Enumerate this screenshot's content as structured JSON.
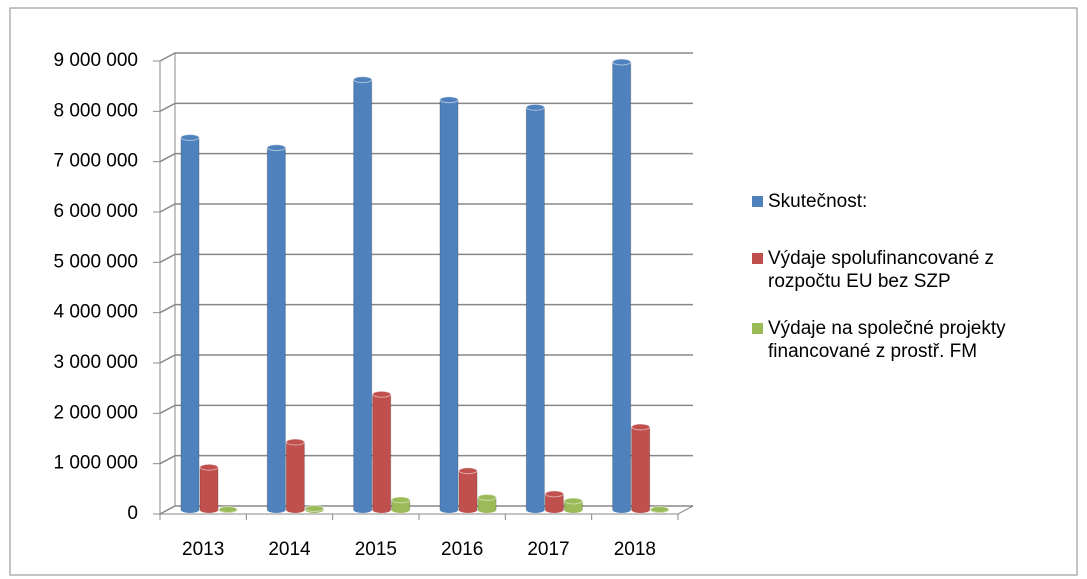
{
  "chart_data": {
    "type": "bar",
    "categories": [
      "2013",
      "2014",
      "2015",
      "2016",
      "2017",
      "2018"
    ],
    "series": [
      {
        "name": "Skutečnost:",
        "color": "#4f81bd",
        "values": [
          7400000,
          7200000,
          8550000,
          8150000,
          8000000,
          8900000
        ]
      },
      {
        "name": "Výdaje spolufinancované z rozpočtu EU bez SZP",
        "color": "#c0504d",
        "values": [
          850000,
          1350000,
          2300000,
          780000,
          320000,
          1650000
        ]
      },
      {
        "name": "Výdaje na společné projekty financované z prostř. FM",
        "color": "#9bbb59",
        "values": [
          10000,
          30000,
          200000,
          250000,
          180000,
          10000
        ]
      }
    ],
    "ylim": [
      0,
      9000000
    ],
    "yticks": [
      0,
      {
        "value": 1000000,
        "label": "1 000 000"
      },
      {
        "value": 2000000,
        "label": "2 000 000"
      },
      {
        "value": 3000000,
        "label": "3 000 000"
      },
      {
        "value": 4000000,
        "label": "4 000 000"
      },
      {
        "value": 5000000,
        "label": "5 000 000"
      },
      {
        "value": 6000000,
        "label": "6 000 000"
      },
      {
        "value": 7000000,
        "label": "7 000 000"
      },
      {
        "value": 8000000,
        "label": "8 000 000"
      },
      {
        "value": 9000000,
        "label": "9 000 000"
      }
    ],
    "grid": true,
    "legend": "right"
  }
}
